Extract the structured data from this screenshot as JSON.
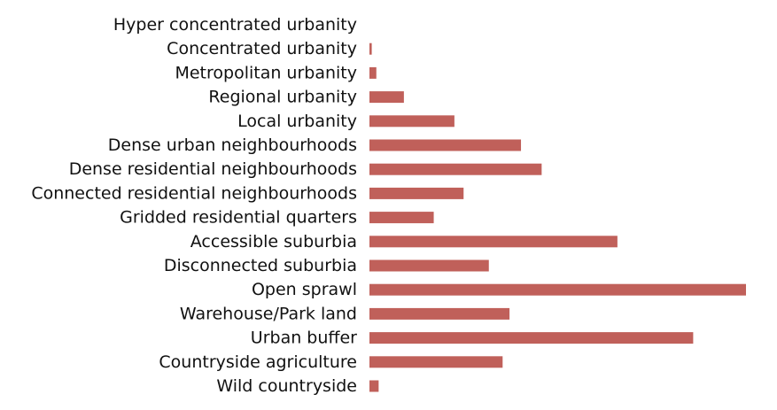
{
  "chart_data": {
    "type": "bar",
    "orientation": "horizontal",
    "title": "",
    "xlabel": "",
    "ylabel": "",
    "grid": false,
    "axes_visible": false,
    "bar_color": "#c0605a",
    "xlim": [
      0,
      0.0163
    ],
    "categories": [
      "Hyper concentrated urbanity",
      "Concentrated urbanity",
      "Metropolitan urbanity",
      "Regional urbanity",
      "Local urbanity",
      "Dense urban neighbourhoods",
      "Dense residential neighbourhoods",
      "Connected residential neighbourhoods",
      "Gridded residential quarters",
      "Accessible suburbia",
      "Disconnected suburbia",
      "Open sprawl",
      "Warehouse/Park land",
      "Urban buffer",
      "Countryside agriculture",
      "Wild countryside"
    ],
    "values": [
      0.0,
      0.0001,
      0.0003,
      0.0015,
      0.0037,
      0.0066,
      0.0075,
      0.0041,
      0.0028,
      0.0108,
      0.0052,
      0.0164,
      0.0061,
      0.0141,
      0.0058,
      0.0004
    ]
  }
}
